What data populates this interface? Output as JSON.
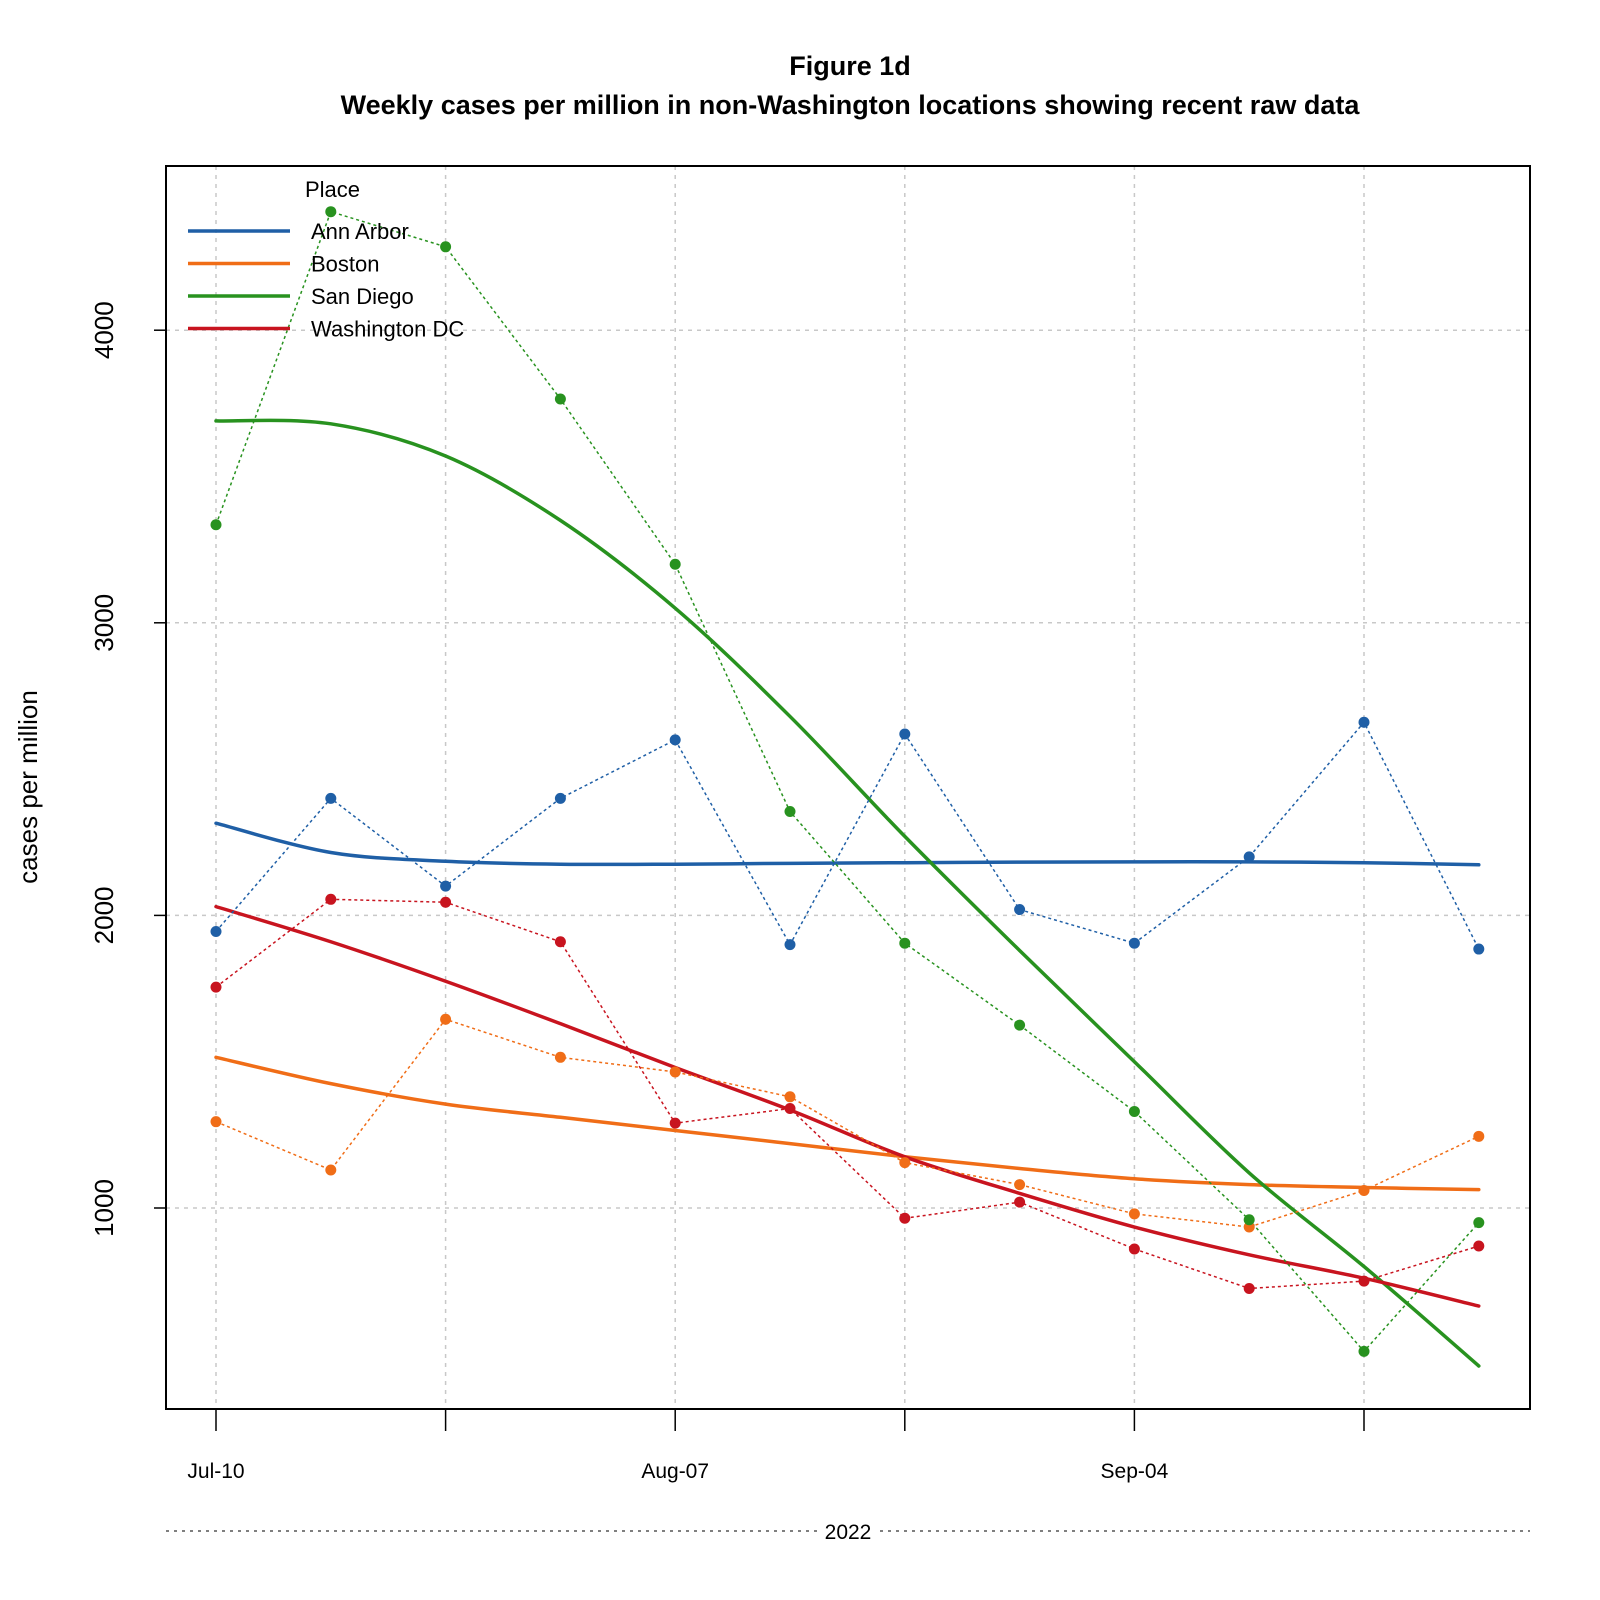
{
  "titles": {
    "line1": "Figure 1d",
    "line2": "Weekly cases per million in non-Washington locations showing recent raw data"
  },
  "axes": {
    "ylabel": "cases per million",
    "year_label": "2022"
  },
  "legend": {
    "title": "Place",
    "placement": "top-left"
  },
  "chart_data": {
    "type": "line",
    "x": [
      "2022-07-10",
      "2022-07-17",
      "2022-07-24",
      "2022-07-31",
      "2022-08-07",
      "2022-08-14",
      "2022-08-21",
      "2022-08-28",
      "2022-09-04",
      "2022-09-11",
      "2022-09-18",
      "2022-09-25"
    ],
    "x_tick_labels": [
      {
        "date": "2022-07-10",
        "label": "Jul-10"
      },
      {
        "date": "2022-08-07",
        "label": "Aug-07"
      },
      {
        "date": "2022-09-04",
        "label": "Sep-04"
      }
    ],
    "x_tick_marks": [
      "2022-07-10",
      "2022-07-24",
      "2022-08-07",
      "2022-08-21",
      "2022-09-04",
      "2022-09-18"
    ],
    "ylabel": "cases per million",
    "ylim": [
      320,
      4560
    ],
    "yticks": [
      1000,
      2000,
      3000,
      4000
    ],
    "grid": true,
    "series": [
      {
        "name": "Ann Arbor",
        "color": "#1f5fa6",
        "raw": [
          1945,
          2400,
          2100,
          2400,
          2600,
          1900,
          2620,
          2020,
          1905,
          2200,
          2660,
          1885
        ],
        "smoothed": [
          2315,
          2215,
          2185,
          2175,
          2175,
          2178,
          2180,
          2182,
          2183,
          2183,
          2180,
          2173
        ]
      },
      {
        "name": "Boston",
        "color": "#f06d17",
        "raw": [
          1295,
          1130,
          1645,
          1515,
          1465,
          1380,
          1155,
          1080,
          980,
          935,
          1060,
          1245
        ],
        "smoothed": [
          1515,
          1425,
          1355,
          1310,
          1265,
          1220,
          1175,
          1135,
          1100,
          1080,
          1070,
          1063
        ]
      },
      {
        "name": "San Diego",
        "color": "#28921f",
        "raw": [
          3335,
          4405,
          4285,
          3765,
          3200,
          2355,
          1905,
          1625,
          1330,
          960,
          510,
          950
        ],
        "smoothed": [
          3690,
          3680,
          3570,
          3350,
          3050,
          2680,
          2270,
          1880,
          1500,
          1120,
          800,
          460
        ]
      },
      {
        "name": "Washington DC",
        "color": "#c8141f",
        "raw": [
          1755,
          2055,
          2045,
          1910,
          1290,
          1340,
          965,
          1020,
          860,
          725,
          750,
          870
        ],
        "smoothed": [
          2030,
          1910,
          1775,
          1630,
          1480,
          1335,
          1175,
          1050,
          935,
          840,
          760,
          665
        ]
      }
    ]
  }
}
